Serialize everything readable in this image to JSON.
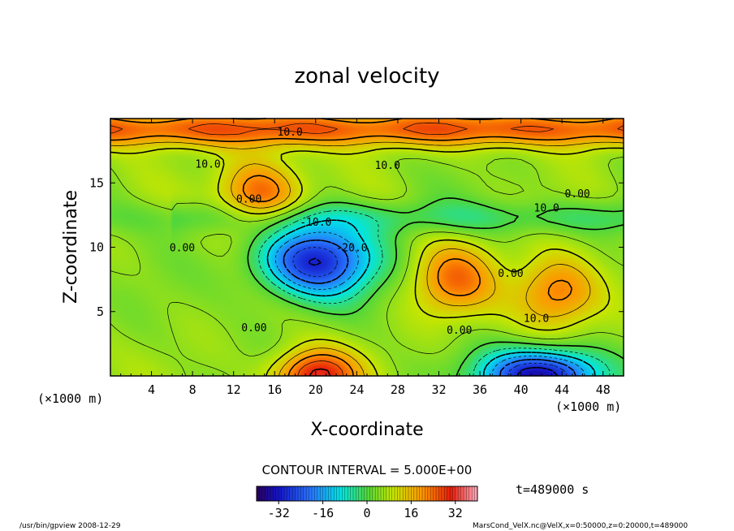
{
  "chart_data": {
    "type": "heatmap",
    "title": "zonal velocity",
    "xlabel": "X-coordinate",
    "ylabel": "Z-coordinate",
    "x_unit_left": "(×1000 m)",
    "x_unit_right": "(×1000 m)",
    "x_ticks": [
      4,
      8,
      12,
      16,
      20,
      24,
      28,
      32,
      36,
      40,
      44,
      48
    ],
    "y_ticks": [
      5,
      10,
      15
    ],
    "xlim": [
      0,
      50
    ],
    "ylim": [
      0,
      20
    ],
    "contour_interval_text": "CONTOUR INTERVAL = 5.000E+00",
    "colorbar_range": [
      -40,
      40
    ],
    "colorbar_ticks": [
      -32,
      -16,
      0,
      16,
      32
    ],
    "time_label": "t=489000  s",
    "contour_labels": [
      {
        "text": "10.0",
        "x": 17.5,
        "y": 19.0
      },
      {
        "text": "10.0",
        "x": 9.5,
        "y": 16.5
      },
      {
        "text": "10.0",
        "x": 27.0,
        "y": 16.4
      },
      {
        "text": "0.00",
        "x": 45.5,
        "y": 14.2
      },
      {
        "text": "0.00",
        "x": 13.5,
        "y": 13.8
      },
      {
        "text": "10.0",
        "x": 42.5,
        "y": 13.1
      },
      {
        "text": "-10.0",
        "x": 20.0,
        "y": 12.0
      },
      {
        "text": "0.00",
        "x": 7.0,
        "y": 10.0
      },
      {
        "text": "-20.0",
        "x": 23.5,
        "y": 10.0
      },
      {
        "text": "0.00",
        "x": 39.0,
        "y": 8.0
      },
      {
        "text": "10.0",
        "x": 41.5,
        "y": 4.5
      },
      {
        "text": "0.00",
        "x": 14.0,
        "y": 3.8
      },
      {
        "text": "0.00",
        "x": 34.0,
        "y": 3.6
      }
    ],
    "features": [
      {
        "kind": "jet",
        "sign": "negative",
        "x": 20,
        "y": 9.0,
        "peak": -30
      },
      {
        "kind": "jet",
        "sign": "positive",
        "x": 20,
        "y": 0.0,
        "peak": 32
      },
      {
        "kind": "jet",
        "sign": "positive",
        "x": 33.5,
        "y": 7.5,
        "peak": 22
      },
      {
        "kind": "jet",
        "sign": "positive",
        "x": 43.5,
        "y": 6.5,
        "peak": 24
      },
      {
        "kind": "jet",
        "sign": "negative",
        "x": 42,
        "y": 0.0,
        "peak": -36
      },
      {
        "kind": "jet",
        "sign": "positive",
        "x": 14.5,
        "y": 14.0,
        "peak": 26
      },
      {
        "kind": "band",
        "sign": "positive",
        "y": 19.2,
        "peak": 20
      }
    ]
  },
  "footer": {
    "left": "/usr/bin/gpview  2008-12-29",
    "right": "MarsCond_VelX.nc@VelX,x=0:50000,z=0:20000,t=489000"
  }
}
